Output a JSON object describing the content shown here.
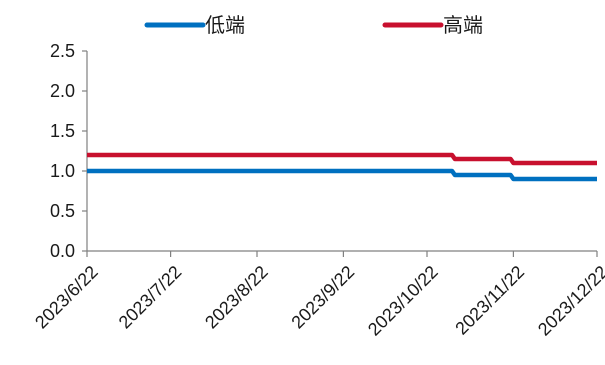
{
  "chart_data": {
    "type": "line",
    "title": "",
    "xlabel": "",
    "ylabel": "",
    "ylim": [
      0,
      2.5
    ],
    "yticks": [
      "0.0",
      "0.5",
      "1.0",
      "1.5",
      "2.0",
      "2.5"
    ],
    "x_range": [
      "2023/6/22",
      "2023/12/22"
    ],
    "xticks": [
      "2023/6/22",
      "2023/7/22",
      "2023/8/22",
      "2023/9/22",
      "2023/10/22",
      "2023/11/22",
      "2023/12/22"
    ],
    "grid": false,
    "legend_position": "top",
    "series": [
      {
        "name": "低端",
        "color": "#0070C0",
        "points": [
          {
            "x": "2023/6/22",
            "y": 1.0
          },
          {
            "x": "2023/10/31",
            "y": 1.0
          },
          {
            "x": "2023/11/1",
            "y": 0.95
          },
          {
            "x": "2023/11/21",
            "y": 0.95
          },
          {
            "x": "2023/11/22",
            "y": 0.9
          },
          {
            "x": "2023/12/22",
            "y": 0.9
          }
        ]
      },
      {
        "name": "高端",
        "color": "#C8102E",
        "points": [
          {
            "x": "2023/6/22",
            "y": 1.2
          },
          {
            "x": "2023/10/31",
            "y": 1.2
          },
          {
            "x": "2023/11/1",
            "y": 1.15
          },
          {
            "x": "2023/11/21",
            "y": 1.15
          },
          {
            "x": "2023/11/22",
            "y": 1.1
          },
          {
            "x": "2023/12/22",
            "y": 1.1
          }
        ]
      }
    ]
  }
}
